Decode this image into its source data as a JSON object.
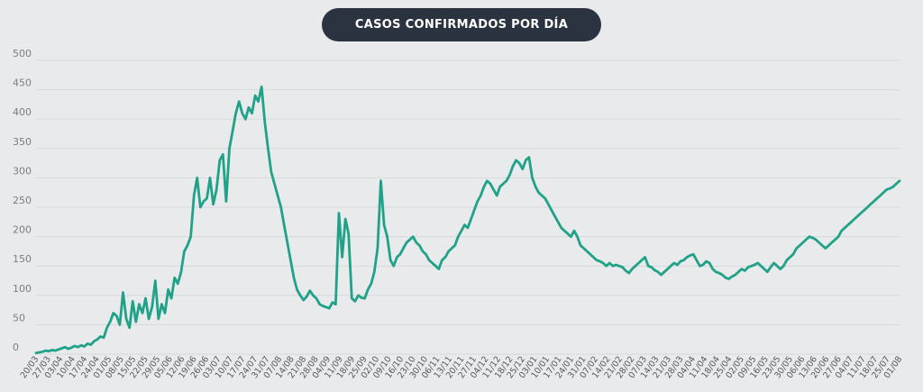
{
  "chart_data": {
    "type": "line",
    "title": "CASOS CONFIRMADOS POR DÍA",
    "xlabel": "",
    "ylabel": "",
    "ylim": [
      0,
      500
    ],
    "yticks": [
      0,
      50,
      100,
      150,
      200,
      250,
      300,
      350,
      400,
      450,
      500
    ],
    "grid": true,
    "line_color": "#1fa288",
    "x_tick_labels": [
      "20/03",
      "27/03",
      "03/04",
      "10/04",
      "17/04",
      "24/04",
      "01/05",
      "08/05",
      "15/05",
      "22/05",
      "29/05",
      "05/06",
      "12/06",
      "19/06",
      "26/06",
      "03/07",
      "10/07",
      "17/07",
      "24/07",
      "31/07",
      "07/08",
      "14/08",
      "21/08",
      "28/08",
      "04/09",
      "11/09",
      "18/09",
      "25/09",
      "02/10",
      "09/10",
      "16/10",
      "23/10",
      "30/10",
      "06/11",
      "13/11",
      "20/11",
      "27/11",
      "04/12",
      "11/12",
      "18/12",
      "25/12",
      "03/01",
      "10/01",
      "17/01",
      "24/01",
      "31/01",
      "07/02",
      "14/02",
      "21/02",
      "28/02",
      "07/03",
      "14/03",
      "21/03",
      "28/03",
      "04/04",
      "11/04",
      "18/04",
      "25/04",
      "02/05",
      "09/05",
      "16/05",
      "23/05",
      "30/05",
      "06/06",
      "13/06",
      "20/06",
      "27/06",
      "04/07",
      "11/07",
      "18/07",
      "25/07",
      "01/08"
    ],
    "series": [
      {
        "values": [
          2,
          3,
          4,
          6,
          5,
          7,
          6,
          8,
          10,
          12,
          9,
          11,
          14,
          12,
          15,
          13,
          18,
          16,
          22,
          25,
          30,
          28,
          45,
          55,
          70,
          65,
          50,
          105,
          60,
          45,
          90,
          55,
          85,
          70,
          95,
          60,
          80,
          125,
          60,
          85,
          70,
          110,
          95,
          130,
          120,
          140,
          175,
          185,
          200,
          270,
          300,
          250,
          260,
          265,
          300,
          255,
          280,
          330,
          340,
          260,
          350,
          380,
          410,
          430,
          410,
          400,
          420,
          410,
          440,
          430,
          455,
          395,
          350,
          310,
          290,
          270,
          250,
          220,
          190,
          160,
          130,
          110,
          100,
          92,
          98,
          108,
          100,
          95,
          85,
          82,
          80,
          78,
          88,
          85,
          240,
          165,
          230,
          205,
          95,
          90,
          100,
          96,
          95,
          110,
          120,
          140,
          180,
          295,
          220,
          200,
          160,
          150,
          165,
          170,
          180,
          190,
          195,
          200,
          190,
          185,
          175,
          170,
          160,
          155,
          150,
          145,
          160,
          165,
          175,
          180,
          185,
          200,
          210,
          220,
          215,
          230,
          245,
          260,
          270,
          285,
          295,
          290,
          280,
          270,
          285,
          290,
          295,
          305,
          320,
          330,
          325,
          315,
          330,
          335,
          300,
          285,
          275,
          270,
          265,
          255,
          245,
          235,
          225,
          215,
          210,
          205,
          200,
          210,
          200,
          185,
          180,
          175,
          170,
          165,
          160,
          158,
          155,
          150,
          155,
          150,
          152,
          150,
          148,
          142,
          138,
          145,
          150,
          155,
          160,
          165,
          150,
          148,
          143,
          140,
          135,
          140,
          145,
          150,
          155,
          152,
          158,
          160,
          165,
          168,
          170,
          160,
          150,
          152,
          158,
          155,
          145,
          140,
          138,
          135,
          130,
          128,
          132,
          135,
          140,
          145,
          142,
          148,
          150,
          152,
          155,
          150,
          145,
          140,
          148,
          155,
          150,
          145,
          150,
          160,
          165,
          170,
          180,
          185,
          190,
          195,
          200,
          198,
          195,
          190,
          185,
          180,
          185,
          190,
          195,
          200,
          210,
          215,
          220,
          225,
          230,
          235,
          240,
          245,
          250,
          255,
          260,
          265,
          270,
          275,
          280,
          282,
          285,
          290,
          295
        ]
      }
    ]
  }
}
